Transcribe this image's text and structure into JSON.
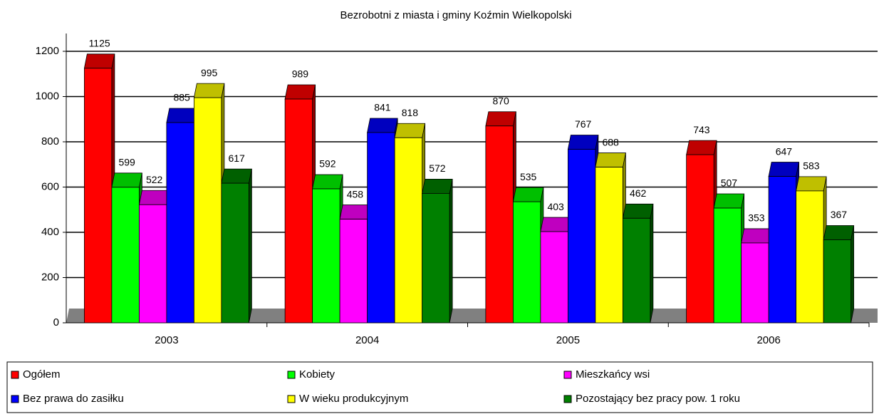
{
  "chart_data": {
    "type": "bar3d",
    "title": "Bezrobotni z miasta i gminy Koźmin Wielkopolski",
    "categories": [
      "2003",
      "2004",
      "2005",
      "2006"
    ],
    "series": [
      {
        "name": "Ogółem",
        "color": "#ff0000",
        "values": [
          1125,
          989,
          870,
          743
        ]
      },
      {
        "name": "Kobiety",
        "color": "#00ff00",
        "values": [
          599,
          592,
          535,
          507
        ]
      },
      {
        "name": "Mieszkańcy wsi",
        "color": "#ff00ff",
        "values": [
          522,
          458,
          403,
          353
        ]
      },
      {
        "name": "Bez prawa do zasiłku",
        "color": "#0000ff",
        "values": [
          885,
          841,
          767,
          647
        ]
      },
      {
        "name": "W wieku produkcyjnym",
        "color": "#ffff00",
        "values": [
          995,
          818,
          688,
          583
        ]
      },
      {
        "name": "Pozostający bez pracy pow. 1 roku",
        "color": "#008000",
        "values": [
          617,
          572,
          462,
          367
        ]
      }
    ],
    "ylim": [
      0,
      1200
    ],
    "yticks": [
      0,
      200,
      400,
      600,
      800,
      1000,
      1200
    ],
    "grid": true,
    "legend": "bottom"
  }
}
